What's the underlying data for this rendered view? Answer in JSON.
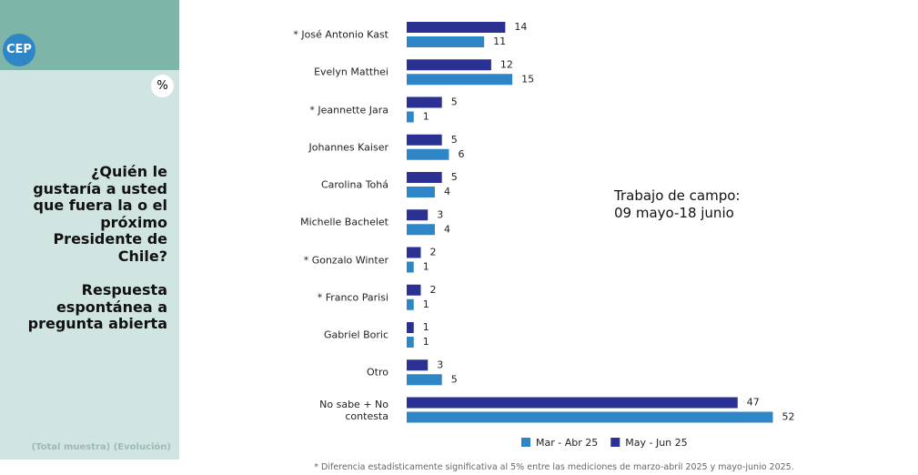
{
  "logo": "CEP",
  "unit": "%",
  "question": "¿Quién le gustaría a usted que fuera la o el próximo Presidente de Chile?",
  "subquestion": "Respuesta espontánea a pregunta abierta",
  "sample_note": "(Total muestra) (Evolución)",
  "chart_data": {
    "type": "bar",
    "orientation": "horizontal",
    "categories": [
      "* José Antonio Kast",
      "Evelyn Matthei",
      "* Jeannette Jara",
      "Johannes Kaiser",
      "Carolina Tohá",
      "Michelle Bachelet",
      "* Gonzalo Winter",
      "* Franco Parisi",
      "Gabriel Boric",
      "Otro",
      "No sabe + No\ncontesta"
    ],
    "series": [
      {
        "name": "Mar - Abr 25",
        "color": "#2f86c6",
        "values": [
          11,
          15,
          1,
          6,
          4,
          4,
          1,
          1,
          1,
          5,
          52
        ]
      },
      {
        "name": "May - Jun 25",
        "color": "#2a3192",
        "values": [
          14,
          12,
          5,
          5,
          5,
          3,
          2,
          2,
          1,
          3,
          47
        ]
      }
    ],
    "annotation": "Trabajo de campo:\n09 mayo-18 junio",
    "footnote": "* Diferencia estadísticamente significativa al 5% entre las mediciones de marzo-abril 2025 y mayo-junio 2025.",
    "legend": "bottom"
  }
}
